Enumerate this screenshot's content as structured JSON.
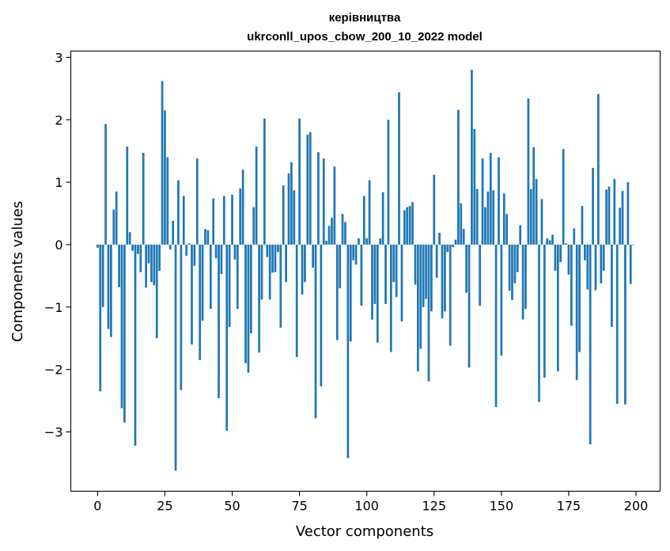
{
  "chart_data": {
    "type": "bar",
    "title_line1": "керівництва",
    "title_line2": "ukrconll_upos_cbow_200_10_2022 model",
    "xlabel": "Vector components",
    "ylabel": "Components values",
    "xlim": [
      -9.95,
      208.95
    ],
    "ylim": [
      -3.95,
      3.1
    ],
    "xticks": [
      0,
      25,
      50,
      75,
      100,
      125,
      150,
      175,
      200
    ],
    "xtick_labels": [
      "0",
      "25",
      "50",
      "75",
      "100",
      "125",
      "150",
      "175",
      "200"
    ],
    "yticks": [
      -3,
      -2,
      -1,
      0,
      1,
      2,
      3
    ],
    "ytick_labels": [
      "−3",
      "−2",
      "−1",
      "0",
      "1",
      "2",
      "3"
    ],
    "bar_color": "#1f77b4",
    "grid": false,
    "values": [
      -0.05,
      -2.35,
      -1.0,
      1.93,
      -1.35,
      -1.48,
      0.56,
      0.85,
      -0.68,
      -2.62,
      -2.85,
      1.57,
      0.2,
      -0.1,
      -3.22,
      -0.15,
      -0.44,
      1.47,
      -0.69,
      -0.3,
      -0.6,
      -0.65,
      -1.5,
      -0.42,
      2.62,
      2.15,
      1.4,
      -0.08,
      0.38,
      -3.62,
      1.03,
      -2.33,
      0.78,
      -0.18,
      0.02,
      -1.6,
      -0.34,
      1.38,
      -1.85,
      -1.22,
      0.25,
      0.23,
      -1.03,
      0.74,
      -0.22,
      -2.46,
      -0.47,
      0.78,
      -2.98,
      -1.32,
      0.8,
      -0.24,
      -1.03,
      0.9,
      1.2,
      -1.9,
      -2.05,
      -1.42,
      0.6,
      1.57,
      -1.73,
      -0.88,
      2.02,
      -0.2,
      -0.88,
      -0.45,
      -0.44,
      -0.12,
      -1.33,
      0.95,
      -0.6,
      1.14,
      1.32,
      0.87,
      -1.8,
      2.02,
      -0.8,
      -0.6,
      1.76,
      1.8,
      -0.37,
      -2.78,
      1.48,
      -2.27,
      1.38,
      0.06,
      0.3,
      0.43,
      1.25,
      -1.53,
      -0.7,
      0.49,
      0.36,
      -3.42,
      -1.55,
      -0.25,
      -0.32,
      0.1,
      -0.98,
      0.78,
      0.1,
      1.03,
      -1.2,
      -0.95,
      -1.57,
      0.1,
      0.84,
      -0.95,
      2.0,
      -1.72,
      -0.6,
      -0.84,
      2.44,
      -1.23,
      0.55,
      0.6,
      0.62,
      0.68,
      -0.64,
      -2.03,
      -1.67,
      -1.0,
      -0.87,
      -2.19,
      -1.07,
      1.12,
      -0.53,
      0.19,
      -1.18,
      -1.07,
      -0.12,
      -1.62,
      -0.04,
      0.08,
      2.16,
      0.66,
      0.25,
      -0.77,
      -1.97,
      2.8,
      1.85,
      0.89,
      -0.98,
      1.38,
      0.6,
      0.85,
      1.47,
      0.87,
      -2.6,
      1.4,
      -1.78,
      0.82,
      0.49,
      -0.74,
      -0.89,
      -0.62,
      -0.44,
      0.31,
      -1.2,
      -1.03,
      2.34,
      0.89,
      1.56,
      1.05,
      -2.52,
      0.73,
      -2.13,
      0.1,
      0.07,
      0.16,
      -0.42,
      -2.03,
      -0.28,
      1.53,
      0.02,
      -0.48,
      -1.3,
      0.26,
      -2.17,
      -1.72,
      0.62,
      -0.25,
      -0.72,
      -3.2,
      1.23,
      -0.73,
      2.41,
      -0.62,
      -0.42,
      0.88,
      0.93,
      -1.32,
      1.05,
      -2.55,
      0.59,
      0.86,
      -2.56,
      1.0,
      -0.63,
      0.0
    ]
  }
}
